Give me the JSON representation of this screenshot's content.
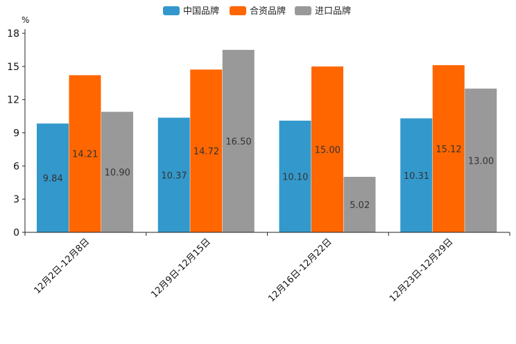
{
  "chart_data": {
    "type": "bar",
    "ylabel": "%",
    "ylim": [
      0,
      18
    ],
    "yticks": [
      "0",
      "3",
      "6",
      "9",
      "12",
      "15",
      "18"
    ],
    "categories": [
      "12月2日-12月8日",
      "12月9日-12月15日",
      "12月16日-12月22日",
      "12月23日-12月29日"
    ],
    "series": [
      {
        "name": "中国品牌",
        "color": "#3399cc",
        "values": [
          9.84,
          10.37,
          10.1,
          10.31
        ],
        "labels": [
          "9.84",
          "10.37",
          "10.10",
          "10.31"
        ]
      },
      {
        "name": "合资品牌",
        "color": "#ff6600",
        "values": [
          14.21,
          14.72,
          15.0,
          15.12
        ],
        "labels": [
          "14.21",
          "14.72",
          "15.00",
          "15.12"
        ]
      },
      {
        "name": "进口品牌",
        "color": "#999999",
        "values": [
          10.9,
          16.5,
          5.02,
          13.0
        ],
        "labels": [
          "10.90",
          "16.50",
          "5.02",
          "13.00"
        ]
      }
    ],
    "legend_position": "top-center",
    "grid": false
  }
}
